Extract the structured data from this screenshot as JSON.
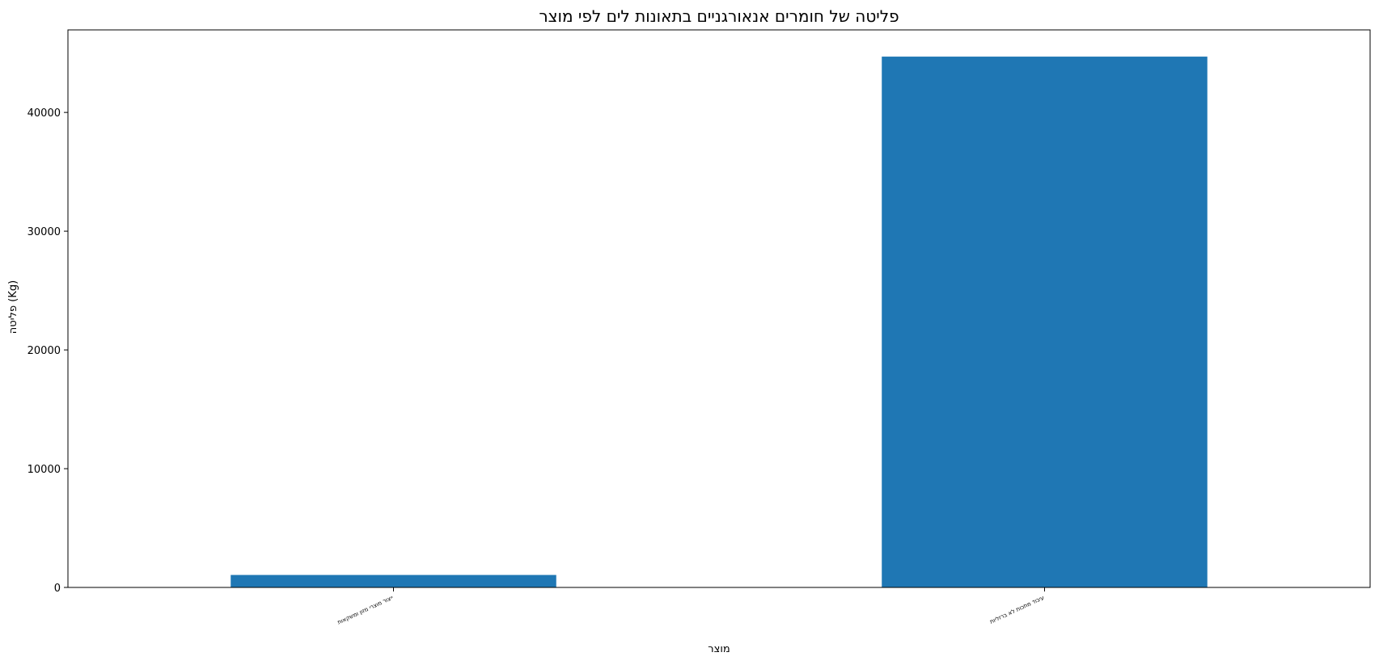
{
  "chart_data": {
    "type": "bar",
    "title": "פליטה של חומרים אנאורגניים בתאונות לים לפי מוצר",
    "xlabel": "מוצר",
    "ylabel": "פליטה (Kg)",
    "categories": [
      "ייצור מוצרי מזון ומשקאות",
      "עיבוד מתכות לא ברזליות"
    ],
    "values": [
      1050,
      44700
    ],
    "ylim": [
      0,
      46950
    ],
    "yticks": [
      0,
      10000,
      20000,
      30000,
      40000
    ],
    "grid": false,
    "bar_color": "#1f77b4"
  }
}
